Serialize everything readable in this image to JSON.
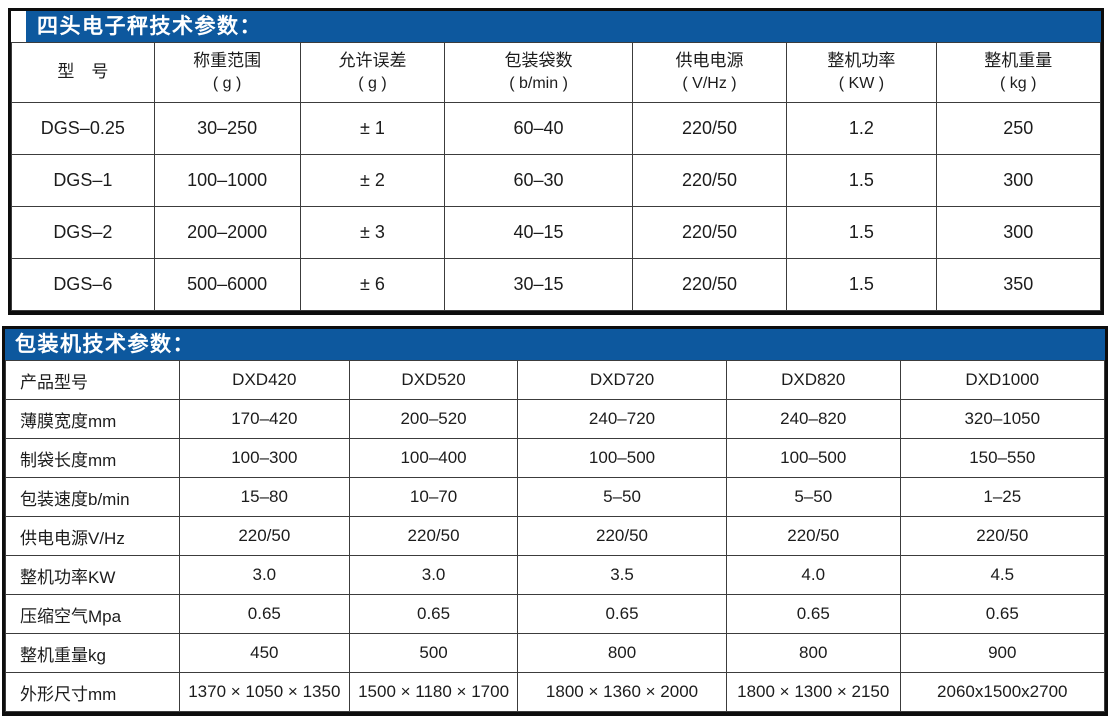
{
  "accent_color": "#0d589e",
  "scale_table": {
    "title": "四头电子秤技术参数：",
    "headers": [
      {
        "line1": "型　号",
        "line2": ""
      },
      {
        "line1": "称重范围",
        "line2": "( g )"
      },
      {
        "line1": "允许误差",
        "line2": "( g )"
      },
      {
        "line1": "包装袋数",
        "line2": "( b/min )"
      },
      {
        "line1": "供电电源",
        "line2": "( V/Hz )"
      },
      {
        "line1": "整机功率",
        "line2": "( KW )"
      },
      {
        "line1": "整机重量",
        "line2": "( kg )"
      }
    ],
    "rows": [
      [
        "DGS–0.25",
        "30–250",
        "± 1",
        "60–40",
        "220/50",
        "1.2",
        "250"
      ],
      [
        "DGS–1",
        "100–1000",
        "± 2",
        "60–30",
        "220/50",
        "1.5",
        "300"
      ],
      [
        "DGS–2",
        "200–2000",
        "± 3",
        "40–15",
        "220/50",
        "1.5",
        "300"
      ],
      [
        "DGS–6",
        "500–6000",
        "± 6",
        "30–15",
        "220/50",
        "1.5",
        "350"
      ]
    ]
  },
  "packer_table": {
    "title": "包装机技术参数：",
    "rows": [
      {
        "label": "产品型号",
        "values": [
          "DXD420",
          "DXD520",
          "DXD720",
          "DXD820",
          "DXD1000"
        ]
      },
      {
        "label": "薄膜宽度mm",
        "values": [
          "170–420",
          "200–520",
          "240–720",
          "240–820",
          "320–1050"
        ]
      },
      {
        "label": "制袋长度mm",
        "values": [
          "100–300",
          "100–400",
          "100–500",
          "100–500",
          "150–550"
        ]
      },
      {
        "label": "包装速度b/min",
        "values": [
          "15–80",
          "10–70",
          "5–50",
          "5–50",
          "1–25"
        ]
      },
      {
        "label": "供电电源V/Hz",
        "values": [
          "220/50",
          "220/50",
          "220/50",
          "220/50",
          "220/50"
        ]
      },
      {
        "label": "整机功率KW",
        "values": [
          "3.0",
          "3.0",
          "3.5",
          "4.0",
          "4.5"
        ]
      },
      {
        "label": "压缩空气Mpa",
        "values": [
          "0.65",
          "0.65",
          "0.65",
          "0.65",
          "0.65"
        ]
      },
      {
        "label": "整机重量kg",
        "values": [
          "450",
          "500",
          "800",
          "800",
          "900"
        ]
      },
      {
        "label": "外形尺寸mm",
        "values": [
          "1370 × 1050 × 1350",
          "1500 × 1180 × 1700",
          "1800 × 1360 × 2000",
          "1800 × 1300 × 2150",
          "2060x1500x2700"
        ]
      }
    ]
  }
}
